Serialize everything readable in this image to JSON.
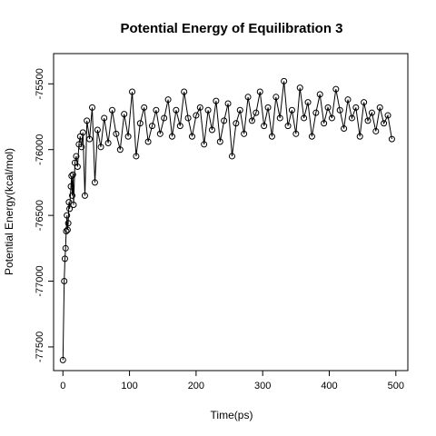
{
  "chart_data": {
    "type": "line",
    "title": "Potential Energy of Equilibration 3",
    "xlabel": "Time(ps)",
    "ylabel": "Potential Energy(kcal/mol)",
    "xlim": [
      -14,
      518
    ],
    "ylim": [
      -77680,
      -75270
    ],
    "xticks": [
      0,
      100,
      200,
      300,
      400,
      500
    ],
    "yticks": [
      -75500,
      -76000,
      -76500,
      -77000,
      -77500
    ],
    "xtick_labels": [
      "0",
      "100",
      "200",
      "300",
      "400",
      "500"
    ],
    "ytick_labels": [
      "-75500",
      "-76000",
      "-76500",
      "-77000",
      "-77500"
    ],
    "grid": false,
    "marker": "open-circle",
    "line_color": "#000000",
    "series": [
      {
        "x": [
          0,
          2,
          3,
          4,
          5,
          6,
          7,
          8,
          9,
          10,
          12,
          13,
          14,
          15,
          16,
          18,
          20,
          22,
          24,
          26,
          28,
          30,
          33,
          36,
          40,
          44,
          48,
          52,
          57,
          62,
          68,
          74,
          80,
          86,
          92,
          98,
          104,
          110,
          116,
          122,
          128,
          134,
          140,
          146,
          152,
          158,
          164,
          170,
          176,
          182,
          188,
          194,
          200,
          206,
          212,
          218,
          224,
          230,
          236,
          242,
          248,
          254,
          260,
          266,
          272,
          278,
          284,
          290,
          296,
          302,
          308,
          314,
          320,
          326,
          332,
          338,
          344,
          350,
          356,
          362,
          368,
          374,
          380,
          386,
          392,
          398,
          404,
          410,
          416,
          422,
          428,
          434,
          440,
          446,
          452,
          458,
          464,
          470,
          476,
          482,
          488,
          494
        ],
        "y": [
          -77600,
          -77000,
          -76830,
          -76750,
          -76620,
          -76500,
          -76610,
          -76560,
          -76400,
          -76450,
          -76280,
          -76200,
          -76350,
          -76190,
          -76420,
          -76100,
          -76050,
          -76130,
          -75960,
          -75900,
          -75980,
          -75870,
          -76350,
          -75780,
          -75920,
          -75680,
          -76250,
          -75850,
          -75980,
          -75760,
          -75950,
          -75700,
          -75880,
          -76000,
          -75730,
          -75900,
          -75560,
          -76050,
          -75800,
          -75680,
          -75940,
          -75820,
          -75700,
          -75880,
          -75760,
          -75620,
          -75900,
          -75700,
          -75820,
          -75560,
          -75760,
          -75900,
          -75740,
          -75680,
          -75960,
          -75700,
          -75850,
          -75630,
          -75940,
          -75780,
          -75650,
          -76050,
          -75800,
          -75700,
          -75880,
          -75600,
          -75780,
          -75720,
          -75560,
          -75820,
          -75680,
          -75900,
          -75600,
          -75760,
          -75480,
          -75820,
          -75700,
          -75880,
          -75530,
          -75760,
          -75640,
          -75900,
          -75720,
          -75580,
          -75800,
          -75680,
          -75760,
          -75540,
          -75700,
          -75840,
          -75620,
          -75760,
          -75680,
          -75900,
          -75640,
          -75780,
          -75720,
          -75860,
          -75680,
          -75800,
          -75740,
          -75920
        ]
      }
    ]
  }
}
